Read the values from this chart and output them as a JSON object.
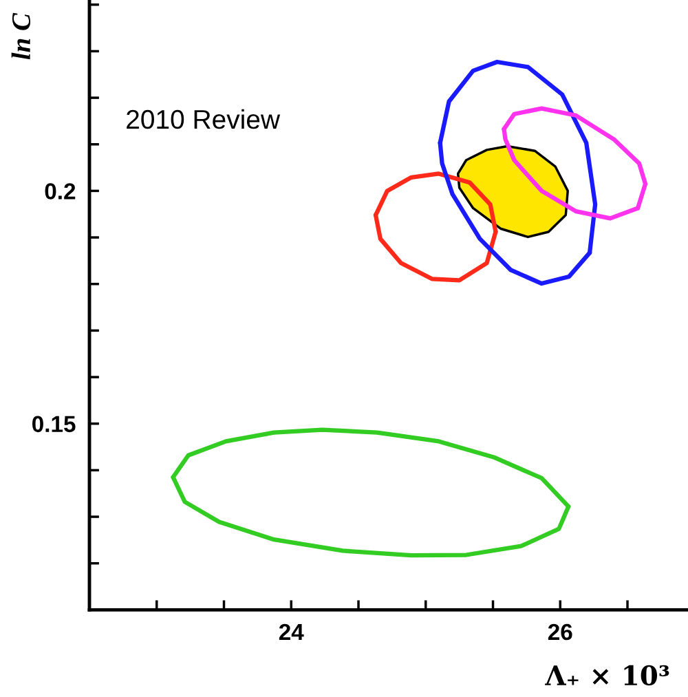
{
  "chart_data": {
    "type": "line",
    "xlabel": "Λ₊ × 10³",
    "ylabel": "ln C",
    "xlim": [
      22.5,
      26.95
    ],
    "ylim": [
      0.11,
      0.241
    ],
    "xticks": [
      {
        "value": 23,
        "label": null
      },
      {
        "value": 23.5,
        "label": null
      },
      24,
      {
        "value": 24.5,
        "label": null
      },
      {
        "value": 25,
        "label": null
      },
      {
        "value": 25.5,
        "label": null
      },
      26,
      {
        "value": 26.5,
        "label": null
      }
    ],
    "yticks": [
      {
        "value": 0.12,
        "label": null
      },
      {
        "value": 0.13,
        "label": null
      },
      {
        "value": 0.14,
        "label": null
      },
      0.15,
      {
        "value": 0.16,
        "label": null
      },
      {
        "value": 0.17,
        "label": null
      },
      {
        "value": 0.18,
        "label": null
      },
      {
        "value": 0.19,
        "label": null
      },
      0.2,
      {
        "value": 0.21,
        "label": null
      },
      {
        "value": 0.22,
        "label": null
      },
      {
        "value": 0.23,
        "label": null
      },
      {
        "value": 0.24,
        "label": null
      }
    ],
    "annotations": [
      "2010 Review"
    ],
    "series": [
      {
        "color": "#33cc22",
        "x": [
          23.122,
          23.235,
          23.515,
          23.872,
          24.23,
          24.638,
          25.097,
          25.505,
          25.862,
          26.061,
          25.99,
          25.709,
          25.301,
          24.893,
          24.383,
          23.872,
          23.464,
          23.209,
          23.122
        ],
        "values": [
          0.1385,
          0.1432,
          0.1462,
          0.1481,
          0.1487,
          0.1481,
          0.1462,
          0.1428,
          0.1383,
          0.1322,
          0.1274,
          0.1237,
          0.1218,
          0.1217,
          0.1227,
          0.1251,
          0.1289,
          0.1332,
          0.1385
        ]
      },
      {
        "color": "#ff2a1a",
        "x": [
          24.628,
          24.714,
          24.893,
          25.097,
          25.327,
          25.48,
          25.52,
          25.454,
          25.25,
          25.046,
          24.816,
          24.663,
          24.628
        ],
        "values": [
          0.1948,
          0.2,
          0.2029,
          0.2037,
          0.2018,
          0.1971,
          0.1912,
          0.1845,
          0.1808,
          0.1811,
          0.1845,
          0.1897,
          0.1948
        ]
      },
      {
        "type": "area",
        "color": "#ffe600",
        "x": [
          25.24,
          25.301,
          25.454,
          25.607,
          25.811,
          25.964,
          26.056,
          26.041,
          25.913,
          25.76,
          25.556,
          25.352,
          25.25
        ],
        "values": [
          0.2037,
          0.2066,
          0.2088,
          0.2096,
          0.2086,
          0.2052,
          0.2,
          0.1948,
          0.1912,
          0.1901,
          0.1919,
          0.1963,
          0.2007
        ]
      },
      {
        "color": "#1a1aff",
        "x": [
          25.107,
          25.173,
          25.352,
          25.531,
          25.76,
          26.015,
          26.194,
          26.26,
          26.219,
          26.066,
          25.862,
          25.633,
          25.403,
          25.199,
          25.122,
          25.107
        ],
        "values": [
          0.2103,
          0.2192,
          0.2258,
          0.2277,
          0.2266,
          0.2207,
          0.2103,
          0.1971,
          0.1867,
          0.1816,
          0.1801,
          0.183,
          0.1897,
          0.1993,
          0.2059,
          0.2103
        ]
      },
      {
        "color": "#ff33ee",
        "x": [
          25.582,
          25.658,
          25.862,
          26.117,
          26.398,
          26.587,
          26.633,
          26.577,
          26.372,
          26.117,
          25.862,
          25.658,
          25.592,
          25.582
        ],
        "values": [
          0.2133,
          0.2165,
          0.2177,
          0.2162,
          0.2111,
          0.2059,
          0.2015,
          0.1963,
          0.1941,
          0.1956,
          0.2,
          0.2066,
          0.2111,
          0.2133
        ]
      }
    ]
  }
}
